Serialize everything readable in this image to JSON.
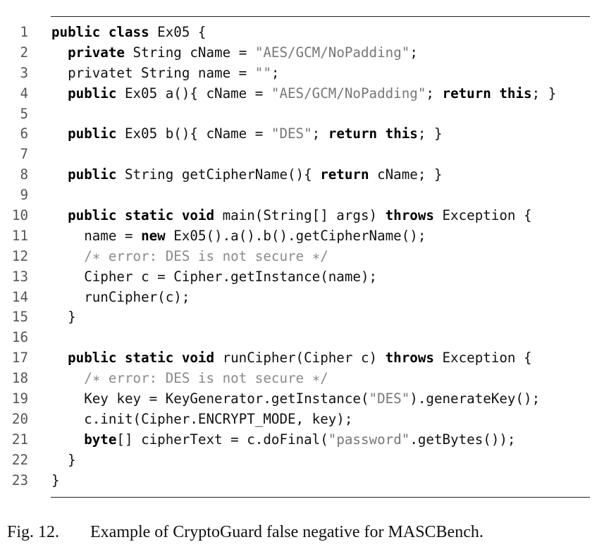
{
  "listing": {
    "lines": [
      {
        "n": "1",
        "indent": 0,
        "tokens": [
          {
            "t": "kw",
            "v": "public class"
          },
          {
            "t": "p",
            "v": " Ex05 {"
          }
        ]
      },
      {
        "n": "2",
        "indent": 1,
        "tokens": [
          {
            "t": "kw",
            "v": "private"
          },
          {
            "t": "p",
            "v": " String cName = "
          },
          {
            "t": "str",
            "v": "\"AES/GCM/NoPadding\""
          },
          {
            "t": "p",
            "v": ";"
          }
        ]
      },
      {
        "n": "3",
        "indent": 1,
        "tokens": [
          {
            "t": "p",
            "v": "privatet String name = "
          },
          {
            "t": "str",
            "v": "\"\""
          },
          {
            "t": "p",
            "v": ";"
          }
        ]
      },
      {
        "n": "4",
        "indent": 1,
        "tokens": [
          {
            "t": "kw",
            "v": "public"
          },
          {
            "t": "p",
            "v": " Ex05 a(){ cName = "
          },
          {
            "t": "str",
            "v": "\"AES/GCM/NoPadding\""
          },
          {
            "t": "p",
            "v": "; "
          },
          {
            "t": "kw",
            "v": "return this"
          },
          {
            "t": "p",
            "v": "; }"
          }
        ]
      },
      {
        "n": "5",
        "indent": 0,
        "tokens": []
      },
      {
        "n": "6",
        "indent": 1,
        "tokens": [
          {
            "t": "kw",
            "v": "public"
          },
          {
            "t": "p",
            "v": " Ex05 b(){ cName = "
          },
          {
            "t": "str",
            "v": "\"DES\""
          },
          {
            "t": "p",
            "v": "; "
          },
          {
            "t": "kw",
            "v": "return this"
          },
          {
            "t": "p",
            "v": "; }"
          }
        ]
      },
      {
        "n": "7",
        "indent": 0,
        "tokens": []
      },
      {
        "n": "8",
        "indent": 1,
        "tokens": [
          {
            "t": "kw",
            "v": "public"
          },
          {
            "t": "p",
            "v": " String getCipherName(){ "
          },
          {
            "t": "kw",
            "v": "return"
          },
          {
            "t": "p",
            "v": " cName; }"
          }
        ]
      },
      {
        "n": "9",
        "indent": 0,
        "tokens": []
      },
      {
        "n": "10",
        "indent": 1,
        "tokens": [
          {
            "t": "kw",
            "v": "public static void"
          },
          {
            "t": "p",
            "v": " main(String[] args) "
          },
          {
            "t": "kw",
            "v": "throws"
          },
          {
            "t": "p",
            "v": " Exception {"
          }
        ]
      },
      {
        "n": "11",
        "indent": 2,
        "tokens": [
          {
            "t": "p",
            "v": "name = "
          },
          {
            "t": "kw",
            "v": "new"
          },
          {
            "t": "p",
            "v": " Ex05().a().b().getCipherName();"
          }
        ]
      },
      {
        "n": "12",
        "indent": 2,
        "tokens": [
          {
            "t": "cm",
            "v": "/∗ error: DES is not secure ∗/"
          }
        ]
      },
      {
        "n": "13",
        "indent": 2,
        "tokens": [
          {
            "t": "p",
            "v": "Cipher c = Cipher.getInstance(name);"
          }
        ]
      },
      {
        "n": "14",
        "indent": 2,
        "tokens": [
          {
            "t": "p",
            "v": "runCipher(c);"
          }
        ]
      },
      {
        "n": "15",
        "indent": 1,
        "tokens": [
          {
            "t": "p",
            "v": "}"
          }
        ]
      },
      {
        "n": "16",
        "indent": 0,
        "tokens": []
      },
      {
        "n": "17",
        "indent": 1,
        "tokens": [
          {
            "t": "kw",
            "v": "public static void"
          },
          {
            "t": "p",
            "v": " runCipher(Cipher c) "
          },
          {
            "t": "kw",
            "v": "throws"
          },
          {
            "t": "p",
            "v": " Exception {"
          }
        ]
      },
      {
        "n": "18",
        "indent": 2,
        "tokens": [
          {
            "t": "cm",
            "v": "/∗ error: DES is not secure ∗/"
          }
        ]
      },
      {
        "n": "19",
        "indent": 2,
        "tokens": [
          {
            "t": "p",
            "v": "Key key = KeyGenerator.getInstance("
          },
          {
            "t": "str",
            "v": "\"DES\""
          },
          {
            "t": "p",
            "v": ").generateKey();"
          }
        ]
      },
      {
        "n": "20",
        "indent": 2,
        "tokens": [
          {
            "t": "p",
            "v": "c.init(Cipher.ENCRYPT_MODE, key);"
          }
        ]
      },
      {
        "n": "21",
        "indent": 2,
        "tokens": [
          {
            "t": "kw",
            "v": "byte"
          },
          {
            "t": "p",
            "v": "[] cipherText = c.doFinal("
          },
          {
            "t": "str",
            "v": "\"password\""
          },
          {
            "t": "p",
            "v": ".getBytes());"
          }
        ]
      },
      {
        "n": "22",
        "indent": 1,
        "tokens": [
          {
            "t": "p",
            "v": "}"
          }
        ]
      },
      {
        "n": "23",
        "indent": 0,
        "tokens": [
          {
            "t": "p",
            "v": "}"
          }
        ]
      }
    ]
  },
  "caption": {
    "label": "Fig. 12.",
    "text": "Example of CryptoGuard false negative for MASCBench."
  }
}
